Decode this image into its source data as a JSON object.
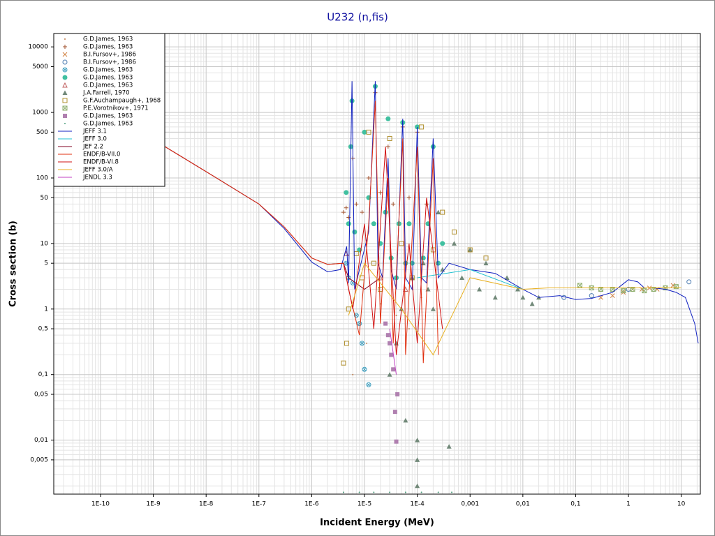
{
  "chart_data": {
    "type": "scatter",
    "title": "U232 (n,fis)",
    "x_label": "Incident Energy (MeV)",
    "y_label": "Cross section (b)",
    "x_log": true,
    "y_log": true,
    "grid": true,
    "minor_grid": true,
    "legend_position": "top-left",
    "xlim": [
      1.3e-11,
      23
    ],
    "ylim": [
      0.0015,
      16000
    ],
    "xticks": [
      {
        "value": 1e-10,
        "label": "1E-10"
      },
      {
        "value": 1e-09,
        "label": "1E-9"
      },
      {
        "value": 1e-08,
        "label": "1E-8"
      },
      {
        "value": 1e-07,
        "label": "1E-7"
      },
      {
        "value": 1e-06,
        "label": "1E-6"
      },
      {
        "value": 1e-05,
        "label": "1E-5"
      },
      {
        "value": 0.0001,
        "label": "1E-4"
      },
      {
        "value": 0.001,
        "label": "0,001"
      },
      {
        "value": 0.01,
        "label": "0,01"
      },
      {
        "value": 0.1,
        "label": "0,1"
      },
      1,
      10
    ],
    "yticks": [
      {
        "value": 0.005,
        "label": "0,005"
      },
      {
        "value": 0.01,
        "label": "0,01"
      },
      {
        "value": 0.05,
        "label": "0,05"
      },
      {
        "value": 0.1,
        "label": "0,1"
      },
      {
        "value": 0.5,
        "label": "0,5"
      },
      1,
      5,
      10,
      50,
      100,
      500,
      1000,
      5000,
      10000
    ],
    "series": [
      {
        "name": "G.D.James, 1963",
        "mode": "markers",
        "marker": "dot",
        "color": "#c08050",
        "x": [
          6e-06,
          1.1e-05,
          2e-05,
          4e-05,
          7e-05,
          0.00012
        ],
        "values": [
          0.1,
          0.3,
          1.2,
          0.8,
          0.5,
          1.5
        ]
      },
      {
        "name": "G.D.James, 1963",
        "mode": "markers",
        "marker": "plus",
        "color": "#a0522d",
        "x": [
          4e-06,
          4.5e-06,
          5e-06,
          6e-06,
          7e-06,
          9e-06,
          1.2e-05,
          1.6e-05,
          2e-05,
          2.8e-05,
          3.5e-05,
          5.3e-05,
          7e-05,
          0.0001,
          0.00015,
          0.0002
        ],
        "values": [
          30,
          35,
          25,
          200,
          40,
          30,
          100,
          2000,
          60,
          300,
          40,
          600,
          50,
          500,
          40,
          300
        ]
      },
      {
        "name": "B.I.Fursov+, 1986",
        "mode": "markers",
        "marker": "x",
        "color": "#d08040",
        "x": [
          0.3,
          0.5,
          0.8,
          1.2,
          1.8,
          2.5,
          3.5,
          5,
          7
        ],
        "values": [
          1.5,
          1.6,
          1.8,
          2.0,
          2.0,
          2.1,
          2.0,
          2.1,
          2.3
        ]
      },
      {
        "name": "B.I.Fursov+, 1986",
        "mode": "markers",
        "marker": "circle",
        "color": "#4a7ab0",
        "x": [
          0.06,
          0.2,
          1.0,
          14
        ],
        "values": [
          1.5,
          1.6,
          2.0,
          2.6
        ]
      },
      {
        "name": "G.D.James, 1963",
        "mode": "markers",
        "marker": "circle-x",
        "color": "#40a0c0",
        "x": [
          4.5e-06,
          5e-06,
          6e-06,
          7e-06,
          8e-06,
          9e-06,
          1e-05,
          1.2e-05
        ],
        "values": [
          5,
          3,
          2.5,
          0.8,
          0.6,
          0.3,
          0.12,
          0.07
        ]
      },
      {
        "name": "G.D.James, 1963",
        "mode": "markers",
        "marker": "filled-circle",
        "color": "#40c0a0",
        "x": [
          4.5e-06,
          5e-06,
          5.5e-06,
          5.8e-06,
          6.5e-06,
          8e-06,
          1e-05,
          1.2e-05,
          1.5e-05,
          1.6e-05,
          2e-05,
          2.5e-05,
          2.8e-05,
          3.2e-05,
          4e-05,
          4.5e-05,
          5.3e-05,
          6e-05,
          7e-05,
          8e-05,
          0.0001,
          0.00013,
          0.00016,
          0.0002,
          0.00025,
          0.0003
        ],
        "values": [
          60,
          20,
          300,
          1500,
          15,
          8,
          500,
          50,
          20,
          2500,
          10,
          30,
          800,
          6,
          3,
          20,
          700,
          5,
          20,
          5,
          600,
          6,
          20,
          300,
          5,
          10
        ]
      },
      {
        "name": "G.D.James, 1963",
        "mode": "markers",
        "marker": "triangle",
        "color": "#c06060",
        "x": [
          4.5e-06,
          2e-05,
          6e-05
        ],
        "values": [
          7,
          3,
          2
        ]
      },
      {
        "name": "J.A.Farrell, 1970",
        "mode": "markers",
        "marker": "filled-triangle",
        "color": "#708878",
        "x": [
          3e-05,
          4e-05,
          5e-05,
          6e-05,
          8e-05,
          0.0001,
          0.0001,
          0.0001,
          0.00013,
          0.00016,
          0.0002,
          0.00025,
          0.0003,
          0.0004,
          0.0005,
          0.0007,
          0.001,
          0.0015,
          0.002,
          0.003,
          0.005,
          0.008,
          0.01,
          0.015,
          0.02
        ],
        "values": [
          0.1,
          0.3,
          1,
          0.02,
          3,
          0.01,
          0.002,
          0.005,
          5,
          2,
          1,
          30,
          4,
          0.008,
          10,
          3,
          8,
          2,
          5,
          1.5,
          3,
          2,
          1.5,
          1.2,
          1.5
        ]
      },
      {
        "name": "G.F.Auchampaugh+, 1968",
        "mode": "markers",
        "marker": "square",
        "color": "#b09030",
        "x": [
          4e-06,
          4.6e-06,
          5e-06,
          7e-06,
          9e-06,
          1.2e-05,
          1.5e-05,
          2e-05,
          3e-05,
          5e-05,
          8e-05,
          0.00012,
          0.0002,
          0.0003,
          0.0005,
          0.001,
          0.002
        ],
        "values": [
          0.15,
          0.3,
          1,
          7,
          3,
          500,
          5,
          2,
          400,
          10,
          3,
          600,
          8,
          30,
          15,
          8,
          6
        ]
      },
      {
        "name": "P.E.Vorotnikov+, 1971",
        "mode": "markers",
        "marker": "square-x",
        "color": "#90b070",
        "x": [
          0.12,
          0.2,
          0.3,
          0.5,
          0.8,
          1.2,
          2,
          3,
          5,
          8
        ],
        "values": [
          2.3,
          2.1,
          2.0,
          2.0,
          1.9,
          2.0,
          1.9,
          2.0,
          2.1,
          2.2
        ]
      },
      {
        "name": "G.D.James, 1963",
        "mode": "markers",
        "marker": "filled-square",
        "color": "#b080b0",
        "x": [
          2.5e-05,
          2.8e-05,
          3e-05,
          3.2e-05,
          3.5e-05,
          3.8e-05,
          4e-05,
          4.2e-05
        ],
        "values": [
          0.6,
          0.4,
          0.3,
          0.2,
          0.12,
          0.027,
          0.0095,
          0.05
        ]
      },
      {
        "name": "G.D.James, 1963",
        "mode": "markers",
        "marker": "dot",
        "color": "#50a080",
        "x": [
          4e-06,
          8e-06,
          1.5e-05,
          3e-05,
          6e-05,
          0.00012,
          0.00025,
          0.00045
        ],
        "values": [
          0.0016,
          0.0016,
          0.0016,
          0.0016,
          0.0016,
          0.0016,
          0.0016,
          0.0016
        ]
      },
      {
        "name": "JEFF 3.1",
        "mode": "line",
        "color": "#1020c0",
        "x": [
          1e-09,
          1e-08,
          1e-07,
          3e-07,
          1e-06,
          2e-06,
          3.5e-06,
          4.6e-06,
          5e-06,
          5.8e-06,
          6.5e-06,
          1.2e-05,
          1.6e-05,
          1.8e-05,
          2.2e-05,
          2.8e-05,
          3.2e-05,
          4e-05,
          5.3e-05,
          6e-05,
          8e-05,
          0.0001,
          0.00012,
          0.00015,
          0.0002,
          0.00025,
          0.0004,
          0.001,
          0.003,
          0.01,
          0.02,
          0.05,
          0.1,
          0.2,
          0.5,
          1,
          1.5,
          2,
          3,
          5,
          8,
          12,
          18,
          21
        ],
        "values": [
          385,
          125,
          40,
          17,
          5.2,
          3.7,
          4,
          9,
          2.5,
          3000,
          2,
          15,
          3000,
          5,
          3,
          200,
          4,
          2,
          800,
          3,
          2,
          600,
          3,
          2.5,
          400,
          3,
          5,
          4,
          3.5,
          2,
          1.5,
          1.6,
          1.4,
          1.45,
          1.8,
          2.8,
          2.6,
          2.1,
          2.1,
          2.0,
          1.8,
          1.5,
          0.6,
          0.3
        ]
      },
      {
        "name": "JEFF 3.0",
        "mode": "line",
        "color": "#20c0d0",
        "x": [
          0.0001,
          0.001,
          0.01
        ],
        "values": [
          3,
          4,
          2
        ]
      },
      {
        "name": "JEF 2.2",
        "mode": "line",
        "color": "#800020",
        "x": [
          1e-09,
          1e-08,
          1e-07,
          3e-07,
          1e-06,
          2e-06,
          4e-06,
          5e-06,
          1e-05,
          2e-05
        ],
        "values": [
          385,
          125,
          40,
          18,
          6,
          4.8,
          5,
          3,
          2,
          3
        ]
      },
      {
        "name": "ENDF/B-VII.0",
        "mode": "line",
        "color": "#e03010",
        "x": [
          1e-09,
          1e-08,
          1e-07,
          3e-07,
          1e-06,
          2e-06,
          4e-06,
          5e-06,
          8e-06,
          1.2e-05,
          1.6e-05,
          2e-05,
          2.8e-05,
          3.5e-05,
          5.3e-05,
          6e-05,
          0.0001,
          0.00013,
          0.0002,
          0.00025
        ],
        "values": [
          385,
          125,
          40,
          18,
          6,
          4.8,
          5,
          2,
          0.4,
          20,
          1500,
          0.6,
          100,
          0.3,
          400,
          0.2,
          300,
          0.15,
          200,
          0.2
        ]
      },
      {
        "name": "ENDF/B-VI.8",
        "mode": "line",
        "color": "#d01010",
        "x": [
          4e-06,
          6e-06,
          1e-05,
          1.5e-05,
          2.5e-05,
          4e-05,
          7e-05,
          0.0001,
          0.00015,
          0.0003
        ],
        "values": [
          5,
          1,
          20,
          0.5,
          300,
          0.2,
          10,
          0.3,
          50,
          0.5
        ]
      },
      {
        "name": "JEFF 3.0/A",
        "mode": "line",
        "color": "#e8b020",
        "x": [
          5e-06,
          1e-05,
          5e-05,
          0.0002,
          0.001,
          0.01,
          0.03,
          0.1,
          1,
          10
        ],
        "values": [
          0.8,
          5,
          1,
          0.2,
          3,
          2,
          2.1,
          2.1,
          2.1,
          2.1
        ]
      },
      {
        "name": "JENDL 3.3",
        "mode": "line",
        "color": "#c040c0",
        "x": [
          3e-05,
          4e-05
        ],
        "values": [
          0.5,
          0.1
        ]
      }
    ]
  }
}
